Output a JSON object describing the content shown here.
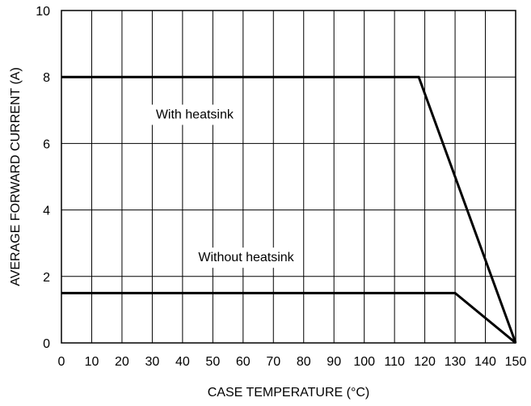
{
  "chart_data": {
    "type": "line",
    "title": "",
    "xlabel": "CASE TEMPERATURE (°C)",
    "ylabel": "AVERAGE FORWARD CURRENT (A)",
    "xlim": [
      0,
      150
    ],
    "ylim": [
      0,
      10
    ],
    "xticks": [
      0,
      10,
      20,
      30,
      40,
      50,
      60,
      70,
      80,
      90,
      100,
      110,
      120,
      130,
      140,
      150
    ],
    "yticks": [
      0,
      2,
      4,
      6,
      8,
      10
    ],
    "grid": true,
    "series": [
      {
        "x": [
          0,
          118,
          150
        ],
        "y": [
          8,
          8,
          0
        ]
      },
      {
        "x": [
          0,
          130,
          150
        ],
        "y": [
          1.5,
          1.5,
          0
        ]
      }
    ],
    "annotations": [
      {
        "text": "With heatsink",
        "x": 44,
        "y": 6.9
      },
      {
        "text": "Without heatsink",
        "x": 61,
        "y": 2.6
      }
    ]
  }
}
